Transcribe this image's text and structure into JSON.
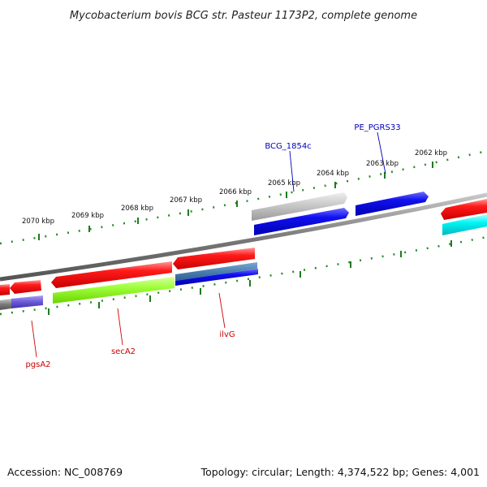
{
  "title": "Mycobacterium bovis BCG str. Pasteur 1173P2, complete genome",
  "footer": {
    "accession": "Accession: NC_008769",
    "topology": "Topology: circular; Length: 4,374,522 bp; Genes: 4,001"
  },
  "colors": {
    "forward_gene": "#ff0000",
    "reverse_gene": "#0000ee",
    "pseudo_gene": "#c8c8c8",
    "light_green_gene": "#99ff33",
    "cyan_gene": "#00ffff",
    "backbone": "#888888",
    "ticks": "#228822",
    "label_forward": "#cc0000",
    "label_reverse": "#0000bb"
  },
  "scale": {
    "outer_labels": [
      "2070 kbp",
      "2069 kbp",
      "2068 kbp",
      "2067 kbp",
      "2066 kbp",
      "2065 kbp",
      "2064 kbp",
      "2063 kbp",
      "2062 kbp"
    ]
  },
  "gene_labels": {
    "top": [
      "BCG_1854c",
      "PE_PGRS33"
    ],
    "bottom": [
      "pgsA2",
      "secA2",
      "ilvG"
    ]
  }
}
